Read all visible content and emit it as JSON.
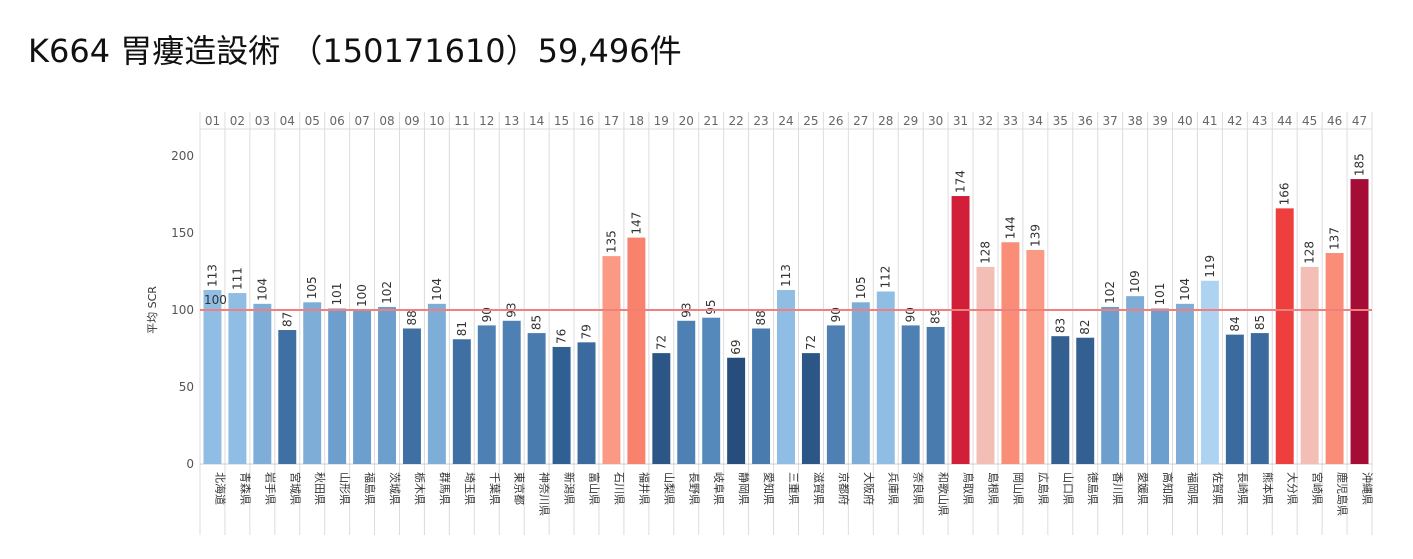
{
  "title": "K664  胃瘻造設術 （150171610）59,496件",
  "chart_data": {
    "type": "bar",
    "ylabel": "平均 SCR",
    "ylim": [
      0,
      210
    ],
    "yticks": [
      0,
      50,
      100,
      150,
      200
    ],
    "reference_line": {
      "value": 100,
      "label": "100",
      "color": "#f08080"
    },
    "codes": [
      "01",
      "02",
      "03",
      "04",
      "05",
      "06",
      "07",
      "08",
      "09",
      "10",
      "11",
      "12",
      "13",
      "14",
      "15",
      "16",
      "17",
      "18",
      "19",
      "20",
      "21",
      "22",
      "23",
      "24",
      "25",
      "26",
      "27",
      "28",
      "29",
      "30",
      "31",
      "32",
      "33",
      "34",
      "35",
      "36",
      "37",
      "38",
      "39",
      "40",
      "41",
      "42",
      "43",
      "44",
      "45",
      "46",
      "47"
    ],
    "categories": [
      "北海道",
      "青森県",
      "岩手県",
      "宮城県",
      "秋田県",
      "山形県",
      "福島県",
      "茨城県",
      "栃木県",
      "群馬県",
      "埼玉県",
      "千葉県",
      "東京都",
      "神奈川県",
      "新潟県",
      "富山県",
      "石川県",
      "福井県",
      "山梨県",
      "長野県",
      "岐阜県",
      "静岡県",
      "愛知県",
      "三重県",
      "滋賀県",
      "京都府",
      "大阪府",
      "兵庫県",
      "奈良県",
      "和歌山県",
      "鳥取県",
      "島根県",
      "岡山県",
      "広島県",
      "山口県",
      "徳島県",
      "香川県",
      "愛媛県",
      "高知県",
      "福岡県",
      "佐賀県",
      "長崎県",
      "熊本県",
      "大分県",
      "宮崎県",
      "鹿児島県",
      "沖縄県"
    ],
    "values": [
      113,
      111,
      104,
      87,
      105,
      101,
      100,
      102,
      88,
      104,
      81,
      90,
      93,
      85,
      76,
      79,
      135,
      147,
      72,
      93,
      95,
      69,
      88,
      113,
      72,
      90,
      105,
      112,
      90,
      89,
      174,
      128,
      144,
      139,
      83,
      82,
      102,
      109,
      101,
      104,
      119,
      84,
      85,
      166,
      128,
      137,
      185
    ],
    "colors": [
      "#8fbde3",
      "#8fbde3",
      "#7eaed8",
      "#3f6fa3",
      "#7eaed8",
      "#6c9fcd",
      "#6c9fcd",
      "#6c9fcd",
      "#3f6fa3",
      "#7eaed8",
      "#3f6fa3",
      "#4f80b3",
      "#4f80b3",
      "#4a7bae",
      "#2f5f93",
      "#3a6a9e",
      "#fb9a84",
      "#f8826b",
      "#2b5686",
      "#4f80b3",
      "#5589bb",
      "#264d7b",
      "#4a7bae",
      "#8fbde3",
      "#2b5686",
      "#4f80b3",
      "#7eaed8",
      "#8fbde3",
      "#4f80b3",
      "#4a7bae",
      "#d11f3a",
      "#f2beb6",
      "#fa8d78",
      "#fb9a84",
      "#345f91",
      "#345f91",
      "#6c9fcd",
      "#7eaed8",
      "#6c9fcd",
      "#7eaed8",
      "#aed3f0",
      "#3a6a9e",
      "#3a6a9e",
      "#ee3f3f",
      "#f2beb6",
      "#fa8d78",
      "#a60d36"
    ]
  }
}
